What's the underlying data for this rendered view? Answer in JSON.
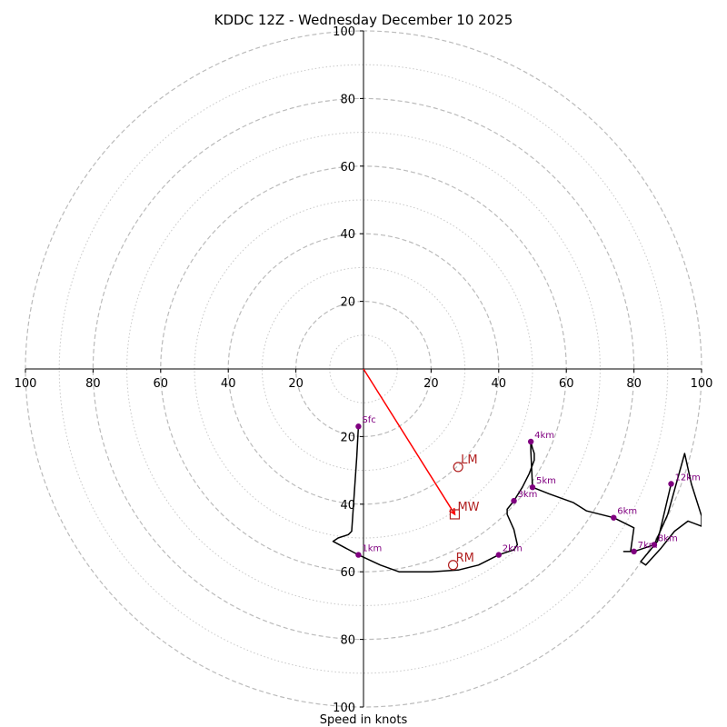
{
  "chart_data": {
    "type": "line",
    "title": "KDDC 12Z - Wednesday December 10 2025",
    "xlabel": "Speed in knots",
    "xlim": [
      -100,
      100
    ],
    "ylim": [
      -100,
      100
    ],
    "rings_major": [
      20,
      40,
      60,
      80,
      100
    ],
    "rings_minor": [
      10,
      30,
      50,
      70,
      90
    ],
    "x_tick_labels": [
      {
        "v": -100,
        "label": "100"
      },
      {
        "v": -80,
        "label": "80"
      },
      {
        "v": -60,
        "label": "60"
      },
      {
        "v": -40,
        "label": "40"
      },
      {
        "v": -20,
        "label": "20"
      },
      {
        "v": 20,
        "label": "20"
      },
      {
        "v": 40,
        "label": "40"
      },
      {
        "v": 60,
        "label": "60"
      },
      {
        "v": 80,
        "label": "80"
      },
      {
        "v": 100,
        "label": "100"
      }
    ],
    "y_tick_labels": [
      {
        "v": 100,
        "label": "100"
      },
      {
        "v": 80,
        "label": "80"
      },
      {
        "v": 60,
        "label": "60"
      },
      {
        "v": 40,
        "label": "40"
      },
      {
        "v": 20,
        "label": "20"
      },
      {
        "v": -20,
        "label": "20"
      },
      {
        "v": -40,
        "label": "40"
      },
      {
        "v": -60,
        "label": "60"
      },
      {
        "v": -80,
        "label": "80"
      },
      {
        "v": -100,
        "label": "100"
      }
    ],
    "hodograph": {
      "color": "#000000",
      "points": [
        [
          -1.5,
          -17
        ],
        [
          -2,
          -26
        ],
        [
          -3.5,
          -48
        ],
        [
          -4.5,
          -49
        ],
        [
          -7.5,
          -50
        ],
        [
          -9,
          -51
        ],
        [
          -1.5,
          -55
        ],
        [
          5,
          -58
        ],
        [
          10.5,
          -60
        ],
        [
          20,
          -60
        ],
        [
          28,
          -59.5
        ],
        [
          34,
          -58
        ],
        [
          40,
          -55
        ],
        [
          41.5,
          -54.5
        ],
        [
          44.5,
          -53.5
        ],
        [
          45.5,
          -52
        ],
        [
          44.5,
          -47.5
        ],
        [
          42.5,
          -43
        ],
        [
          42.5,
          -41.5
        ],
        [
          44.5,
          -39
        ],
        [
          47,
          -35
        ],
        [
          49,
          -31
        ],
        [
          50.5,
          -27
        ],
        [
          50.5,
          -25
        ],
        [
          50,
          -23.5
        ],
        [
          49.5,
          -21.5
        ],
        [
          49.5,
          -24
        ],
        [
          50,
          -35
        ],
        [
          55,
          -37
        ],
        [
          62,
          -39.5
        ],
        [
          66,
          -42
        ],
        [
          74,
          -44
        ],
        [
          80,
          -47
        ],
        [
          79,
          -54
        ],
        [
          77,
          -54
        ],
        [
          80,
          -54
        ],
        [
          86,
          -52
        ],
        [
          90,
          -43
        ],
        [
          95,
          -25
        ],
        [
          97,
          -34
        ],
        [
          100,
          -43.5
        ],
        [
          100,
          -46.5
        ],
        [
          96,
          -45
        ],
        [
          92,
          -48
        ],
        [
          88,
          -53
        ],
        [
          83.5,
          -58
        ],
        [
          82,
          -57
        ],
        [
          87,
          -51
        ],
        [
          91,
          -34
        ]
      ]
    },
    "height_markers": [
      {
        "label": "Sfc",
        "x": -1.5,
        "y": -17
      },
      {
        "label": "1km",
        "x": -1.5,
        "y": -55
      },
      {
        "label": "2km",
        "x": 40,
        "y": -55
      },
      {
        "label": "3km",
        "x": 44.5,
        "y": -39
      },
      {
        "label": "4km",
        "x": 49.5,
        "y": -21.5
      },
      {
        "label": "5km",
        "x": 50,
        "y": -35
      },
      {
        "label": "6km",
        "x": 74,
        "y": -44
      },
      {
        "label": "7km",
        "x": 80,
        "y": -54
      },
      {
        "label": "8km",
        "x": 86,
        "y": -52
      },
      {
        "label": "12km",
        "x": 91,
        "y": -34
      }
    ],
    "marker_color": "#800080",
    "motion_color": "#b22222",
    "mean_wind_vector": {
      "from": [
        0,
        0
      ],
      "to": [
        27,
        -43
      ],
      "color": "#ff0000"
    },
    "storm_motions": [
      {
        "label": "LM",
        "x": 28,
        "y": -29,
        "symbol": "circle"
      },
      {
        "label": "MW",
        "x": 27,
        "y": -43,
        "symbol": "square"
      },
      {
        "label": "RM",
        "x": 26.5,
        "y": -58,
        "symbol": "circle"
      }
    ]
  }
}
